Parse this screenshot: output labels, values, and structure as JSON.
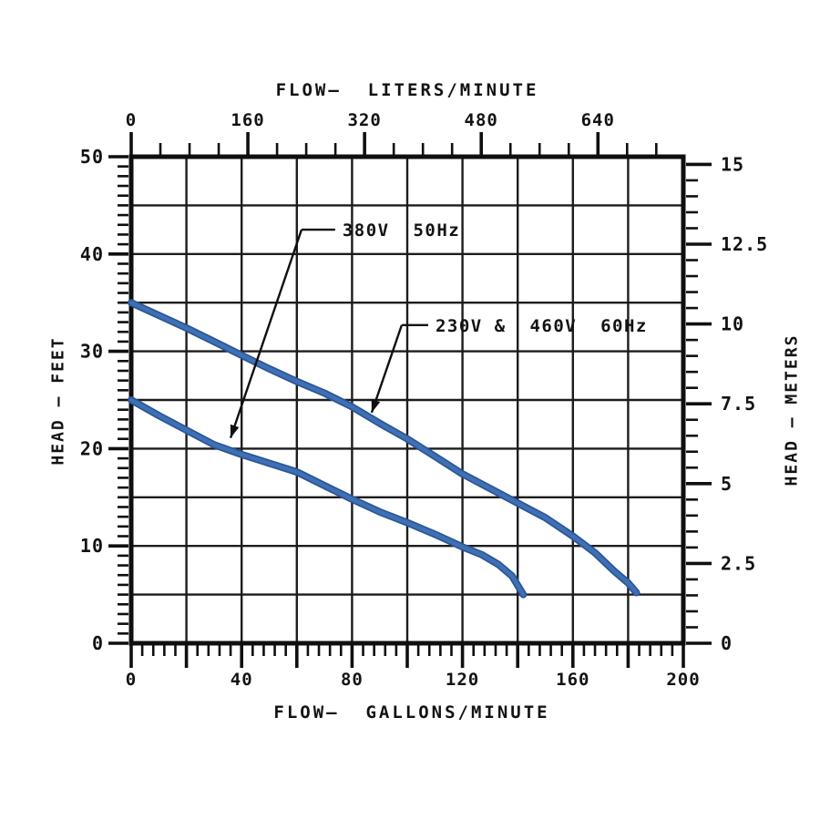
{
  "page": {
    "background": "#ffffff",
    "description": "Pump performance curve chart"
  },
  "chart_data": {
    "type": "line",
    "title": "",
    "axes": {
      "top": {
        "label": "FLOW—  LITERS/MINUTE",
        "unit": "liters/minute",
        "range": [
          0,
          757
        ],
        "minor_step": 40,
        "major_step": 160,
        "tick_labels": [
          "0",
          "160",
          "320",
          "480",
          "640"
        ],
        "tick_values": [
          0,
          160,
          320,
          480,
          640
        ]
      },
      "bottom": {
        "label": "FLOW—  GALLONS/MINUTE",
        "unit": "gallons/minute",
        "range": [
          0,
          200
        ],
        "minor_step": 4,
        "major_step": 20,
        "tick_labels": [
          "0",
          "40",
          "80",
          "120",
          "160",
          "200"
        ],
        "tick_values": [
          0,
          40,
          80,
          120,
          160,
          200
        ]
      },
      "left": {
        "label": "HEAD — FEET",
        "unit": "feet",
        "range": [
          0,
          50
        ],
        "minor_step": 1,
        "major_step": 10,
        "tick_labels": [
          "0",
          "10",
          "20",
          "30",
          "40",
          "50"
        ],
        "tick_values": [
          0,
          10,
          20,
          30,
          40,
          50
        ]
      },
      "right": {
        "label": "HEAD — METERS",
        "unit": "meters",
        "range": [
          0,
          15.2
        ],
        "minor_step": 0.5,
        "major_step": 2.5,
        "tick_labels": [
          "0",
          "2.5",
          "5",
          "7.5",
          "10",
          "12.5",
          "15"
        ],
        "tick_values": [
          0,
          2.5,
          5,
          7.5,
          10,
          12.5,
          15
        ]
      }
    },
    "grid": {
      "on": true,
      "x_step_gallons": 20,
      "y_step_feet": 5
    },
    "series": [
      {
        "name": "230V & 460V 60Hz",
        "voltage": "230V & 460V",
        "frequency": "60Hz",
        "points_gpm_ft": [
          [
            0,
            35
          ],
          [
            10,
            33.7
          ],
          [
            20,
            32.4
          ],
          [
            30,
            31.0
          ],
          [
            40,
            29.6
          ],
          [
            50,
            28.2
          ],
          [
            60,
            26.9
          ],
          [
            70,
            25.7
          ],
          [
            80,
            24.3
          ],
          [
            90,
            22.6
          ],
          [
            100,
            21.0
          ],
          [
            110,
            19.2
          ],
          [
            120,
            17.4
          ],
          [
            130,
            15.9
          ],
          [
            140,
            14.4
          ],
          [
            150,
            12.9
          ],
          [
            160,
            11.0
          ],
          [
            168,
            9.3
          ],
          [
            175,
            7.4
          ],
          [
            180,
            6.2
          ],
          [
            183,
            5.2
          ]
        ]
      },
      {
        "name": "380V 50Hz",
        "voltage": "380V",
        "frequency": "50Hz",
        "points_gpm_ft": [
          [
            0,
            25
          ],
          [
            10,
            23.4
          ],
          [
            20,
            21.9
          ],
          [
            30,
            20.4
          ],
          [
            40,
            19.4
          ],
          [
            50,
            18.5
          ],
          [
            60,
            17.6
          ],
          [
            70,
            16.2
          ],
          [
            80,
            14.8
          ],
          [
            90,
            13.5
          ],
          [
            100,
            12.4
          ],
          [
            110,
            11.2
          ],
          [
            120,
            9.9
          ],
          [
            127,
            9.1
          ],
          [
            133,
            8.1
          ],
          [
            138,
            6.9
          ],
          [
            142,
            5.0
          ]
        ]
      },
      {
        "name": "_legend_note",
        "voltage": "",
        "frequency": "",
        "points_gpm_ft": []
      }
    ],
    "annotations": [
      {
        "text": "380V  50Hz",
        "series": "380V 50Hz",
        "label_at": [
          75.2,
          42.5
        ],
        "elbow_at": [
          61.7,
          42.5
        ],
        "arrow_to": [
          36.0,
          21.1
        ]
      },
      {
        "text": "230V &  460V  60Hz",
        "series": "230V & 460V 60Hz",
        "label_at": [
          108.9,
          32.7
        ],
        "elbow_at": [
          98.0,
          32.7
        ],
        "arrow_to": [
          87.1,
          23.7
        ]
      }
    ],
    "legend_position": "annotated-on-plot",
    "colors": {
      "curve": "#3f6fb5",
      "curve_edge": "#2b5694",
      "grid": "#1c1c1c",
      "axis": "#0f0f0f",
      "text": "#121212",
      "background": "#ffffff"
    }
  }
}
